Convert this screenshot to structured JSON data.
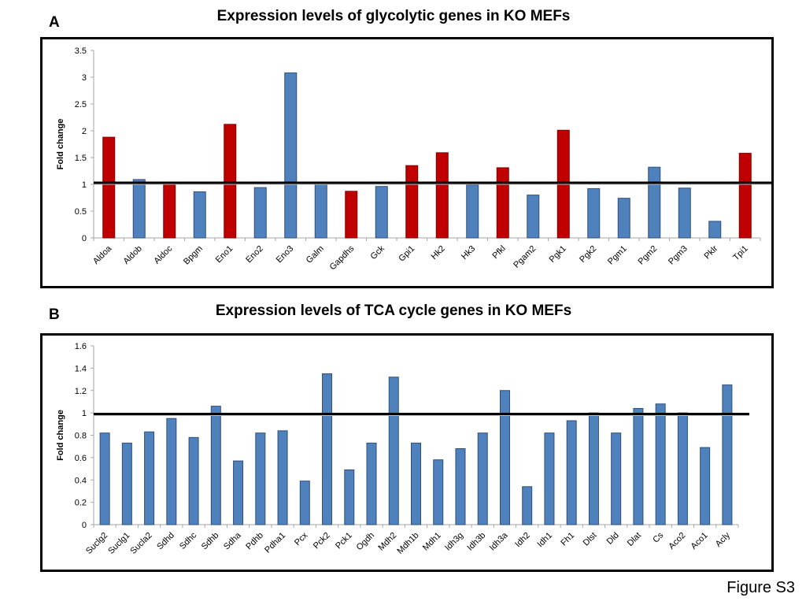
{
  "figure_label": "Figure S3",
  "colors": {
    "up": "#C00000",
    "up_border": "#7F0000",
    "neutral": "#4F81BD",
    "neutral_border": "#2F4F7A",
    "threshold": "#000000",
    "axis": "#A6A6A6"
  },
  "chart_data": [
    {
      "panel": "A",
      "type": "bar",
      "title": "Expression levels of glycolytic genes in KO MEFs",
      "xlabel": "",
      "ylabel": "Fold change",
      "ylim": [
        0,
        3.5
      ],
      "yticks": [
        "0",
        "0.5",
        "1",
        "1.5",
        "2",
        "2.5",
        "3",
        "3.5"
      ],
      "ytick_values": [
        0,
        0.5,
        1,
        1.5,
        2,
        2.5,
        3,
        3.5
      ],
      "threshold": 1.03,
      "grid": false,
      "categories": [
        "Aldoa",
        "Aldob",
        "Aldoc",
        "Bpgm",
        "Eno1",
        "Eno2",
        "Eno3",
        "Galm",
        "Gapdhs",
        "Gck",
        "Gpi1",
        "Hk2",
        "Hk3",
        "Pfkl",
        "Pgam2",
        "Pgk1",
        "Pgk2",
        "Pgm1",
        "Pgm2",
        "Pgm3",
        "Pklr",
        "Tpi1"
      ],
      "values": [
        1.88,
        1.09,
        1.03,
        0.86,
        2.12,
        0.94,
        3.08,
        1.01,
        0.87,
        0.96,
        1.35,
        1.59,
        0.99,
        1.31,
        0.8,
        2.01,
        0.92,
        0.74,
        1.32,
        0.93,
        0.31,
        1.58
      ],
      "highlight": [
        true,
        false,
        true,
        false,
        true,
        false,
        false,
        false,
        true,
        false,
        true,
        true,
        false,
        true,
        false,
        true,
        false,
        false,
        false,
        false,
        false,
        true
      ]
    },
    {
      "panel": "B",
      "type": "bar",
      "title": "Expression levels of TCA cycle genes in KO MEFs",
      "xlabel": "",
      "ylabel": "Fold change",
      "ylim": [
        0,
        1.6
      ],
      "yticks": [
        "0",
        "0.2",
        "0.4",
        "0.6",
        "0.8",
        "1",
        "1.2",
        "1.4",
        "1.6"
      ],
      "ytick_values": [
        0,
        0.2,
        0.4,
        0.6,
        0.8,
        1,
        1.2,
        1.4,
        1.6
      ],
      "threshold": 0.99,
      "grid": false,
      "categories": [
        "Suclg2",
        "Suclg1",
        "Sucla2",
        "Sdhd",
        "Sdhc",
        "Sdhb",
        "Sdha",
        "Pdhb",
        "Pdha1",
        "Pcx",
        "Pck2",
        "Pck1",
        "Ogdh",
        "Mdh2",
        "Mdh1b",
        "Mdh1",
        "Idh3g",
        "Idh3b",
        "Idh3a",
        "Idh2",
        "Idh1",
        "Fh1",
        "Dlst",
        "Dld",
        "Dlat",
        "Cs",
        "Aco2",
        "Aco1",
        "Acly"
      ],
      "values": [
        0.82,
        0.73,
        0.83,
        0.95,
        0.78,
        1.06,
        0.57,
        0.82,
        0.84,
        0.39,
        1.35,
        0.49,
        0.73,
        1.32,
        0.73,
        0.58,
        0.68,
        0.82,
        1.2,
        0.34,
        0.82,
        0.93,
        1.0,
        0.82,
        1.04,
        1.08,
        1.0,
        0.69,
        1.25
      ],
      "highlight": [
        false,
        false,
        false,
        false,
        false,
        false,
        false,
        false,
        false,
        false,
        false,
        false,
        false,
        false,
        false,
        false,
        false,
        false,
        false,
        false,
        false,
        false,
        false,
        false,
        false,
        false,
        false,
        false,
        false
      ]
    }
  ]
}
